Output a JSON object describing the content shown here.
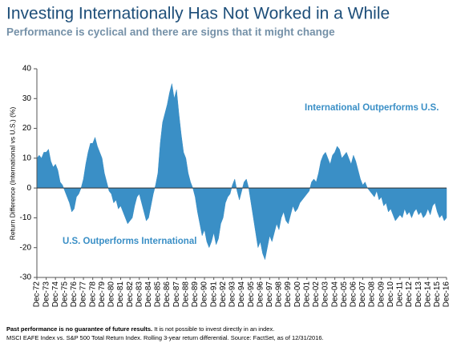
{
  "chart_data": {
    "type": "area",
    "title": "Investing Internationally Has Not Worked in a While",
    "subtitle": "Performance is cyclical and there are signs that it might change",
    "y_label": "Return Difference (International vs U.S.) (%)",
    "annotations": [
      "International Outperforms U.S.",
      "U.S. Outperforms International"
    ],
    "footnote_bold": "Past performance is no guarantee of future results.",
    "footnote": "It is not possible to invest directly in an index.",
    "source": "MSCI EAFE Index vs. S&P 500 Total Return Index. Rolling 3-year return differential. Source: FactSet, as of 12/31/2016.",
    "color": "#3a8fc6",
    "ylim": [
      -30,
      40
    ],
    "yticks": [
      -30,
      -20,
      -10,
      0,
      10,
      20,
      30,
      40
    ],
    "categories": [
      "Dec-72",
      null,
      null,
      null,
      "Dec-73",
      null,
      null,
      null,
      "Dec-74",
      null,
      null,
      null,
      "Dec-75",
      null,
      null,
      null,
      "Dec-76",
      null,
      null,
      null,
      "Dec-77",
      null,
      null,
      null,
      "Dec-78",
      null,
      null,
      null,
      "Dec-79",
      null,
      null,
      null,
      "Dec-80",
      null,
      null,
      null,
      "Dec-81",
      null,
      null,
      null,
      "Dec-82",
      null,
      null,
      null,
      "Dec-83",
      null,
      null,
      null,
      "Dec-84",
      null,
      null,
      null,
      "Dec-85",
      null,
      null,
      null,
      "Dec-86",
      null,
      null,
      null,
      "Dec-87",
      null,
      null,
      null,
      "Dec-88",
      null,
      null,
      null,
      "Dec-89",
      null,
      null,
      null,
      "Dec-90",
      null,
      null,
      null,
      "Dec-91",
      null,
      null,
      null,
      "Dec-92",
      null,
      null,
      null,
      "Dec-93",
      null,
      null,
      null,
      "Dec-94",
      null,
      null,
      null,
      "Dec-95",
      null,
      null,
      null,
      "Dec-96",
      null,
      null,
      null,
      "Dec-97",
      null,
      null,
      null,
      "Dec-98",
      null,
      null,
      null,
      "Dec-99",
      null,
      null,
      null,
      "Dec-00",
      null,
      null,
      null,
      "Dec-01",
      null,
      null,
      null,
      "Dec-02",
      null,
      null,
      null,
      "Dec-03",
      null,
      null,
      null,
      "Dec-04",
      null,
      null,
      null,
      "Dec-05",
      null,
      null,
      null,
      "Dec-06",
      null,
      null,
      null,
      "Dec-07",
      null,
      null,
      null,
      "Dec-08",
      null,
      null,
      null,
      "Dec-09",
      null,
      null,
      null,
      "Dec-10",
      null,
      null,
      null,
      "Dec-11",
      null,
      null,
      null,
      "Dec-12",
      null,
      null,
      null,
      "Dec-13",
      null,
      null,
      null,
      "Dec-14",
      null,
      null,
      null,
      "Dec-15",
      null,
      null,
      null,
      "Dec-16"
    ],
    "values": [
      10,
      11,
      10,
      12,
      12,
      13,
      9,
      7,
      8,
      6,
      2,
      1,
      -1,
      -3,
      -5,
      -8,
      -7,
      -3,
      -2,
      0,
      3,
      8,
      12,
      15,
      15,
      17,
      14,
      12,
      10,
      5,
      2,
      -1,
      -2,
      -5,
      -4,
      -7,
      -6,
      -8,
      -10,
      -12,
      -11,
      -10,
      -6,
      -3,
      -2,
      -5,
      -8,
      -11,
      -10,
      -6,
      -2,
      1,
      5,
      15,
      22,
      25,
      28,
      32,
      35,
      30,
      33,
      25,
      18,
      12,
      10,
      5,
      2,
      0,
      -3,
      -8,
      -12,
      -16,
      -14,
      -18,
      -20,
      -18,
      -15,
      -19,
      -17,
      -12,
      -10,
      -5,
      -3,
      -2,
      1,
      3,
      -1,
      -4,
      -1,
      2,
      3,
      0,
      -5,
      -10,
      -15,
      -20,
      -18,
      -22,
      -24,
      -20,
      -16,
      -18,
      -15,
      -12,
      -14,
      -10,
      -8,
      -11,
      -12,
      -9,
      -6,
      -8,
      -7,
      -5,
      -4,
      -3,
      -2,
      -1,
      2,
      3,
      2,
      5,
      9,
      11,
      12,
      10,
      8,
      11,
      12,
      14,
      13,
      10,
      11,
      12,
      10,
      8,
      11,
      9,
      6,
      3,
      1,
      2,
      0,
      -1,
      -2,
      -3,
      -1,
      -4,
      -3,
      -6,
      -5,
      -8,
      -7,
      -9,
      -11,
      -10,
      -9,
      -10,
      -7,
      -9,
      -8,
      -10,
      -8,
      -7,
      -9,
      -8,
      -10,
      -9,
      -7,
      -9,
      -6,
      -5,
      -8,
      -10,
      -9,
      -11,
      -10
    ]
  }
}
